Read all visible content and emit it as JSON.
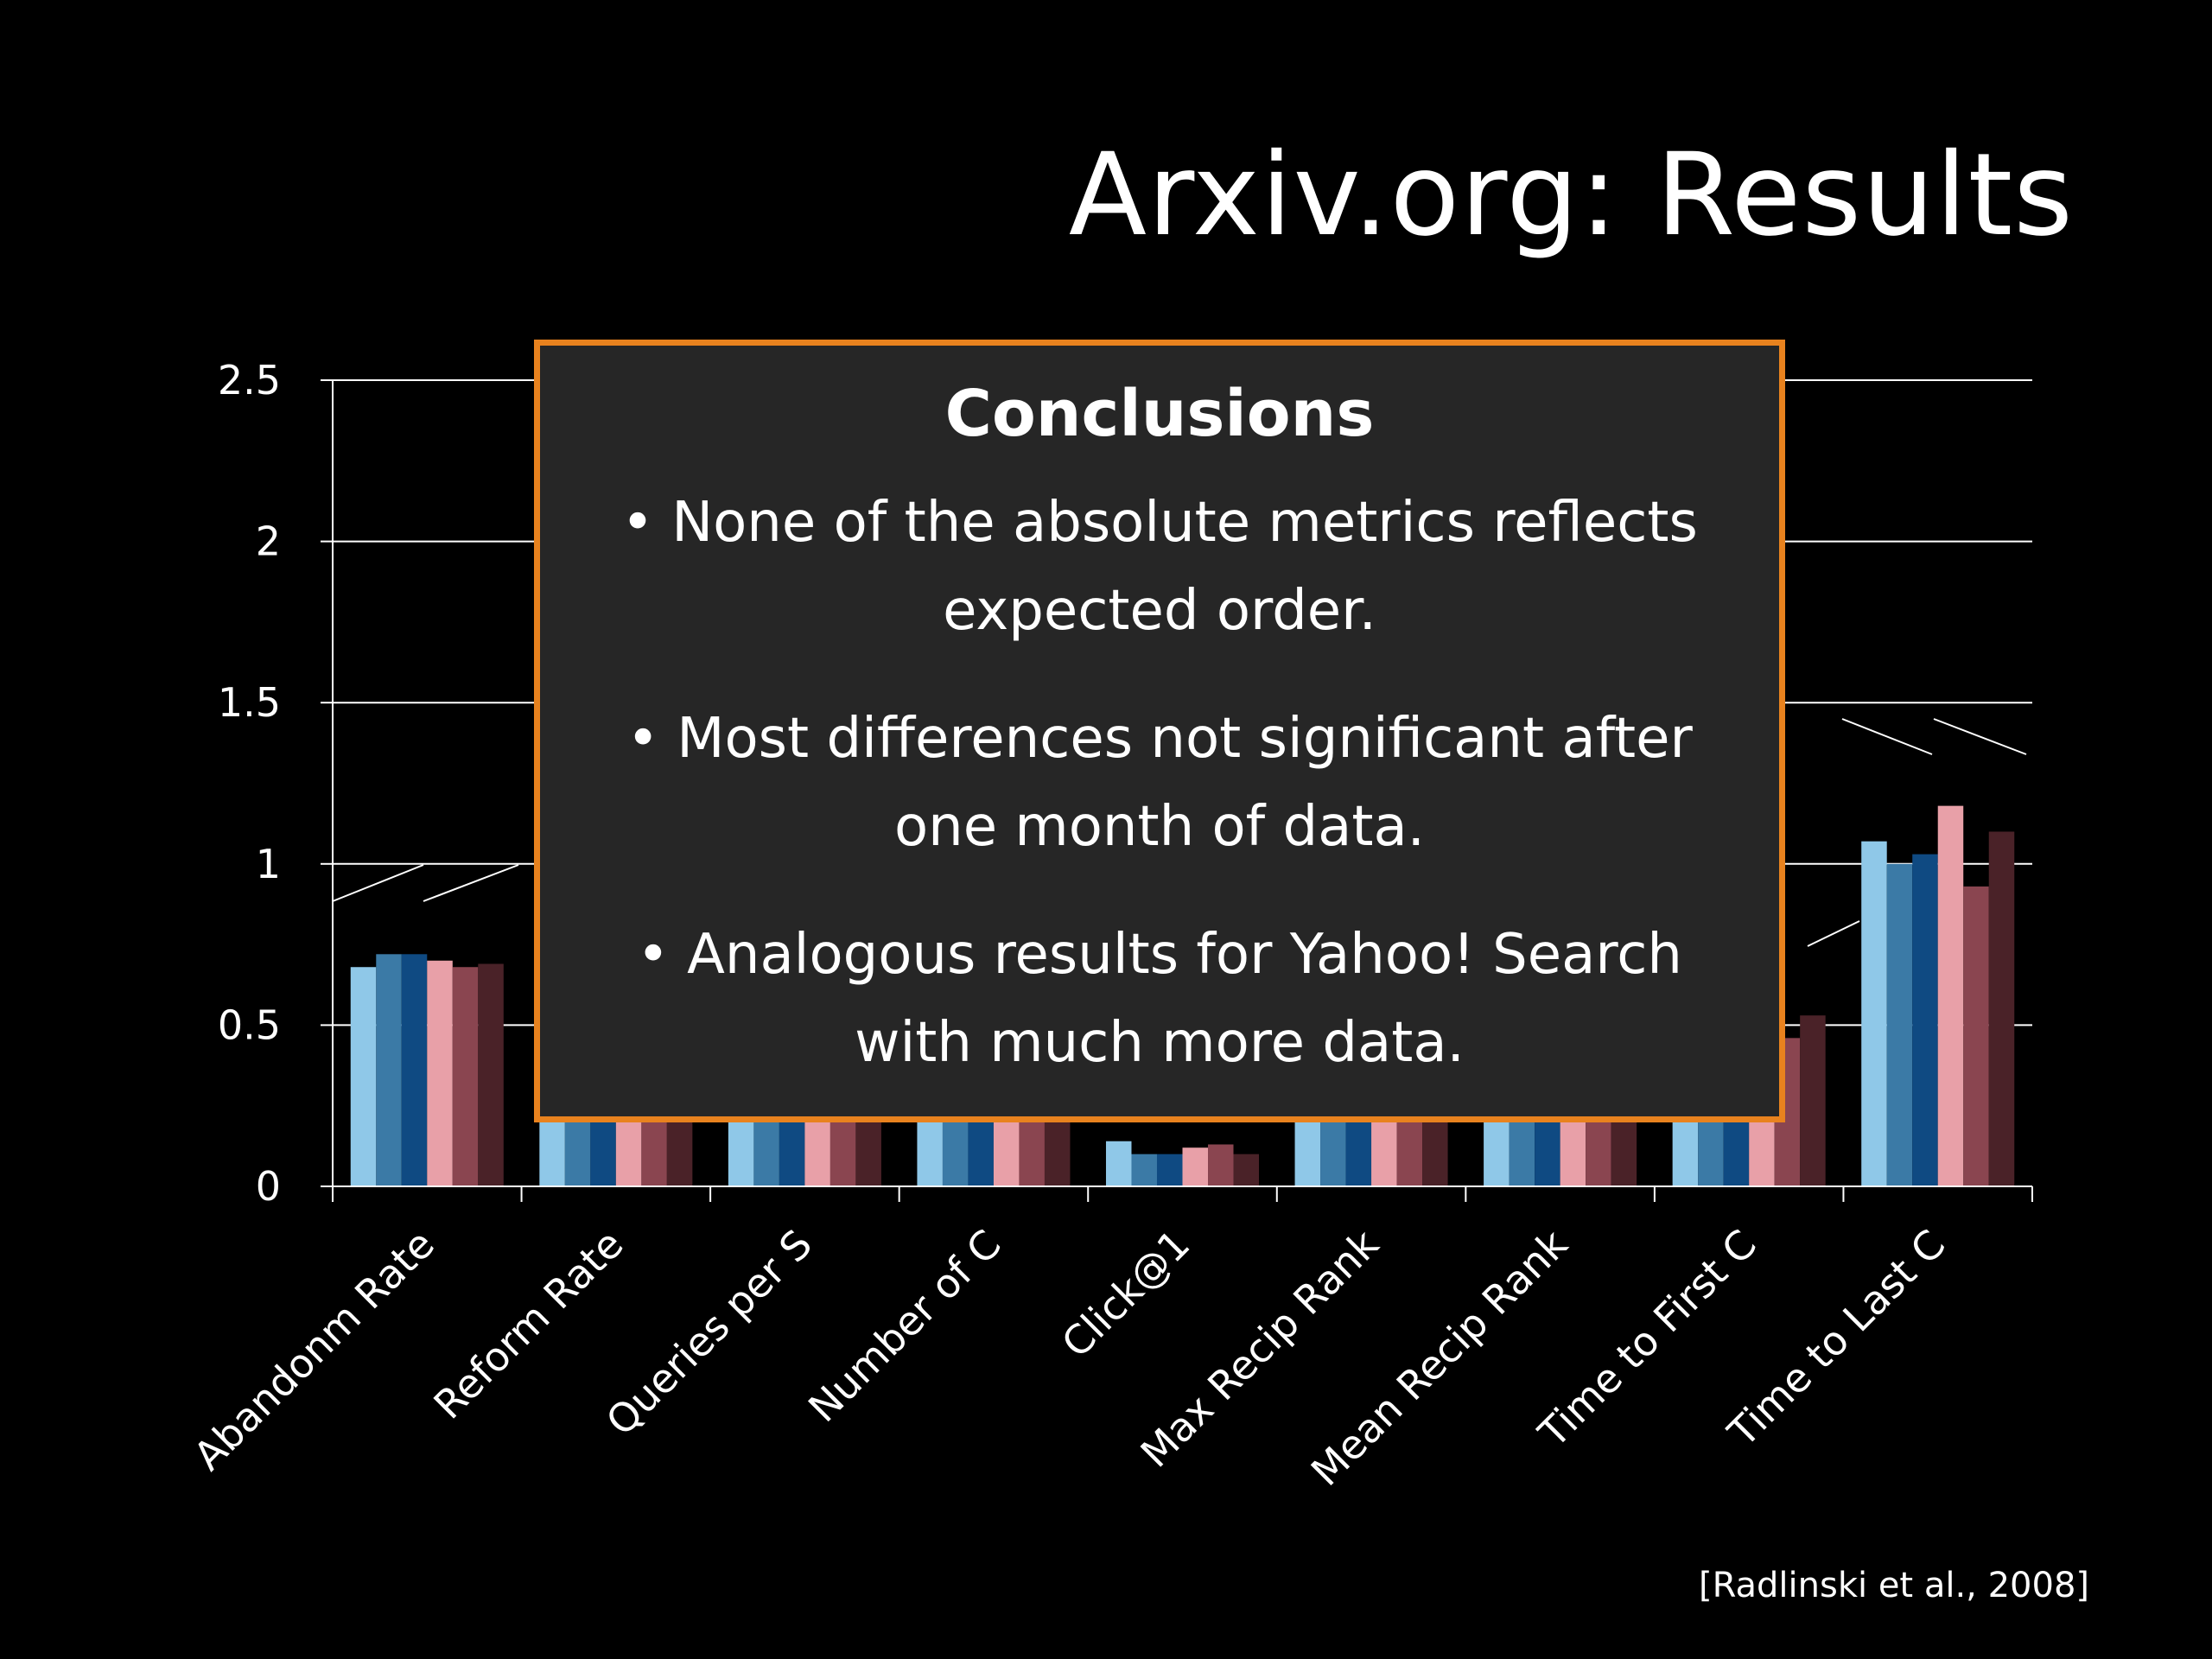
{
  "slide": {
    "title": "Arxiv.org: Results",
    "citation": "[Radlinski et al., 2008]"
  },
  "conclusions": {
    "heading": "Conclusions",
    "bullets": [
      "• None of the absolute metrics reflects expected order.",
      "• Most differences not significant after one month of data.",
      "• Analogous results for Yahoo! Search with much more data."
    ],
    "border_color": "#e8821e",
    "background_color": "#262626"
  },
  "chart_data": {
    "type": "bar",
    "categories": [
      "Abandonm Rate",
      "Reform Rate",
      "Queries per S",
      "Number of C",
      "Click@1",
      "Max Recip Rank",
      "Mean Recip Rank",
      "Time to First C",
      "Time to Last C"
    ],
    "yticks": [
      "0",
      "0.5",
      "1",
      "1.5",
      "2",
      "2.5"
    ],
    "ylim": [
      0,
      2.5
    ],
    "grid": true,
    "legend": "none",
    "series": [
      {
        "color": "#8fc8e8",
        "values": [
          0.68,
          0.5,
          0.5,
          0.5,
          0.14,
          0.5,
          0.5,
          0.5,
          1.07
        ]
      },
      {
        "color": "#3b7aa6",
        "values": [
          0.72,
          0.5,
          0.5,
          0.5,
          0.1,
          0.5,
          0.5,
          0.5,
          1.0
        ]
      },
      {
        "color": "#0f4a82",
        "values": [
          0.72,
          0.5,
          0.5,
          0.5,
          0.1,
          0.5,
          0.5,
          0.5,
          1.03
        ]
      },
      {
        "color": "#e8a0a8",
        "values": [
          0.7,
          0.5,
          0.5,
          0.5,
          0.12,
          0.5,
          0.5,
          0.5,
          1.18
        ]
      },
      {
        "color": "#8a4550",
        "values": [
          0.68,
          0.5,
          0.5,
          0.5,
          0.13,
          0.5,
          0.5,
          0.46,
          0.93
        ]
      },
      {
        "color": "#4a2228",
        "values": [
          0.69,
          0.5,
          0.5,
          0.5,
          0.1,
          0.5,
          0.5,
          0.53,
          1.1
        ]
      }
    ]
  }
}
